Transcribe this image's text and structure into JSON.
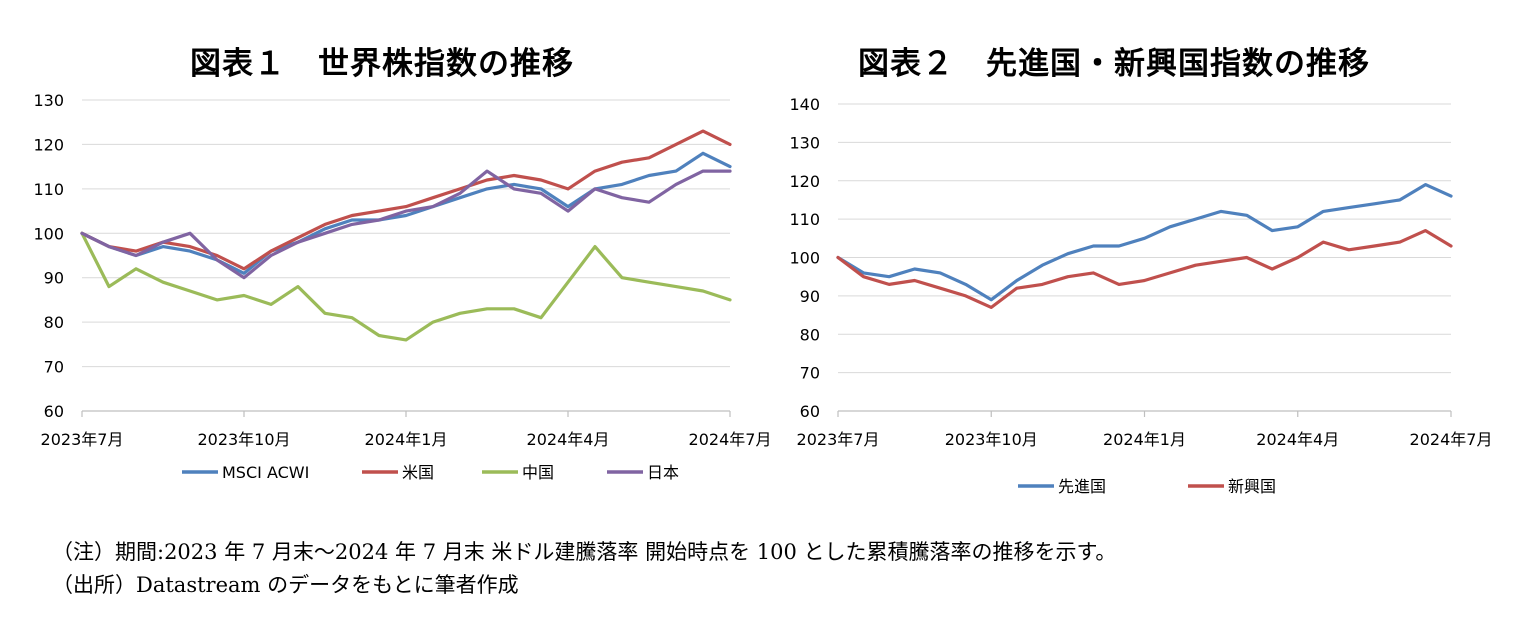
{
  "notes": {
    "note": "（注）期間:2023 年 7 月末～2024 年 7 月末 米ドル建騰落率 開始時点を 100 とした累積騰落率の推移を示す。",
    "source": "（出所）Datastream のデータをもとに筆者作成"
  },
  "chart_data": [
    {
      "type": "line",
      "title": "図表１　世界株指数の推移",
      "xlabel": "",
      "ylabel": "",
      "ylim": [
        60,
        130
      ],
      "yticks": [
        60,
        70,
        80,
        90,
        100,
        110,
        120,
        130
      ],
      "xlim": [
        0,
        12
      ],
      "x_tick_positions": [
        0,
        3,
        6,
        9,
        12
      ],
      "x_tick_labels": [
        "2023年7月",
        "2023年10月",
        "2024年1月",
        "2024年4月",
        "2024年7月"
      ],
      "grid": true,
      "legend": "bottom",
      "x": [
        0,
        0.5,
        1,
        1.5,
        2,
        2.5,
        3,
        3.5,
        4,
        4.5,
        5,
        5.5,
        6,
        6.5,
        7,
        7.5,
        8,
        8.5,
        9,
        9.5,
        10,
        10.5,
        11,
        11.5,
        12
      ],
      "series": [
        {
          "name": "MSCI ACWI",
          "color": "#4f81bd",
          "values": [
            100,
            97,
            95,
            97,
            96,
            94,
            91,
            96,
            98,
            101,
            103,
            103,
            104,
            106,
            108,
            110,
            111,
            110,
            106,
            110,
            111,
            113,
            114,
            118,
            115
          ]
        },
        {
          "name": "米国",
          "color": "#c0504d",
          "values": [
            100,
            97,
            96,
            98,
            97,
            95,
            92,
            96,
            99,
            102,
            104,
            105,
            106,
            108,
            110,
            112,
            113,
            112,
            110,
            114,
            116,
            117,
            120,
            123,
            120
          ]
        },
        {
          "name": "中国",
          "color": "#9bbb59",
          "values": [
            100,
            88,
            92,
            89,
            87,
            85,
            86,
            84,
            88,
            82,
            81,
            77,
            76,
            80,
            82,
            83,
            83,
            81,
            89,
            97,
            90,
            89,
            88,
            87,
            85
          ]
        },
        {
          "name": "日本",
          "color": "#8064a2",
          "values": [
            100,
            97,
            95,
            98,
            100,
            94,
            90,
            95,
            98,
            100,
            102,
            103,
            105,
            106,
            109,
            114,
            110,
            109,
            105,
            110,
            108,
            107,
            111,
            114,
            114
          ]
        }
      ]
    },
    {
      "type": "line",
      "title": "図表２　先進国・新興国指数の推移",
      "xlabel": "",
      "ylabel": "",
      "ylim": [
        60,
        140
      ],
      "yticks": [
        60,
        70,
        80,
        90,
        100,
        110,
        120,
        130,
        140
      ],
      "xlim": [
        0,
        12
      ],
      "x_tick_positions": [
        0,
        3,
        6,
        9,
        12
      ],
      "x_tick_labels": [
        "2023年7月",
        "2023年10月",
        "2024年1月",
        "2024年4月",
        "2024年7月"
      ],
      "grid": true,
      "legend": "bottom",
      "x": [
        0,
        0.5,
        1,
        1.5,
        2,
        2.5,
        3,
        3.5,
        4,
        4.5,
        5,
        5.5,
        6,
        6.5,
        7,
        7.5,
        8,
        8.5,
        9,
        9.5,
        10,
        10.5,
        11,
        11.5,
        12
      ],
      "series": [
        {
          "name": "先進国",
          "color": "#4f81bd",
          "values": [
            100,
            96,
            95,
            97,
            96,
            93,
            89,
            94,
            98,
            101,
            103,
            103,
            105,
            108,
            110,
            112,
            111,
            107,
            108,
            112,
            113,
            114,
            115,
            119,
            116
          ]
        },
        {
          "name": "新興国",
          "color": "#c0504d",
          "values": [
            100,
            95,
            93,
            94,
            92,
            90,
            87,
            92,
            93,
            95,
            96,
            93,
            94,
            96,
            98,
            99,
            100,
            97,
            100,
            104,
            102,
            103,
            104,
            107,
            103
          ]
        }
      ]
    }
  ]
}
